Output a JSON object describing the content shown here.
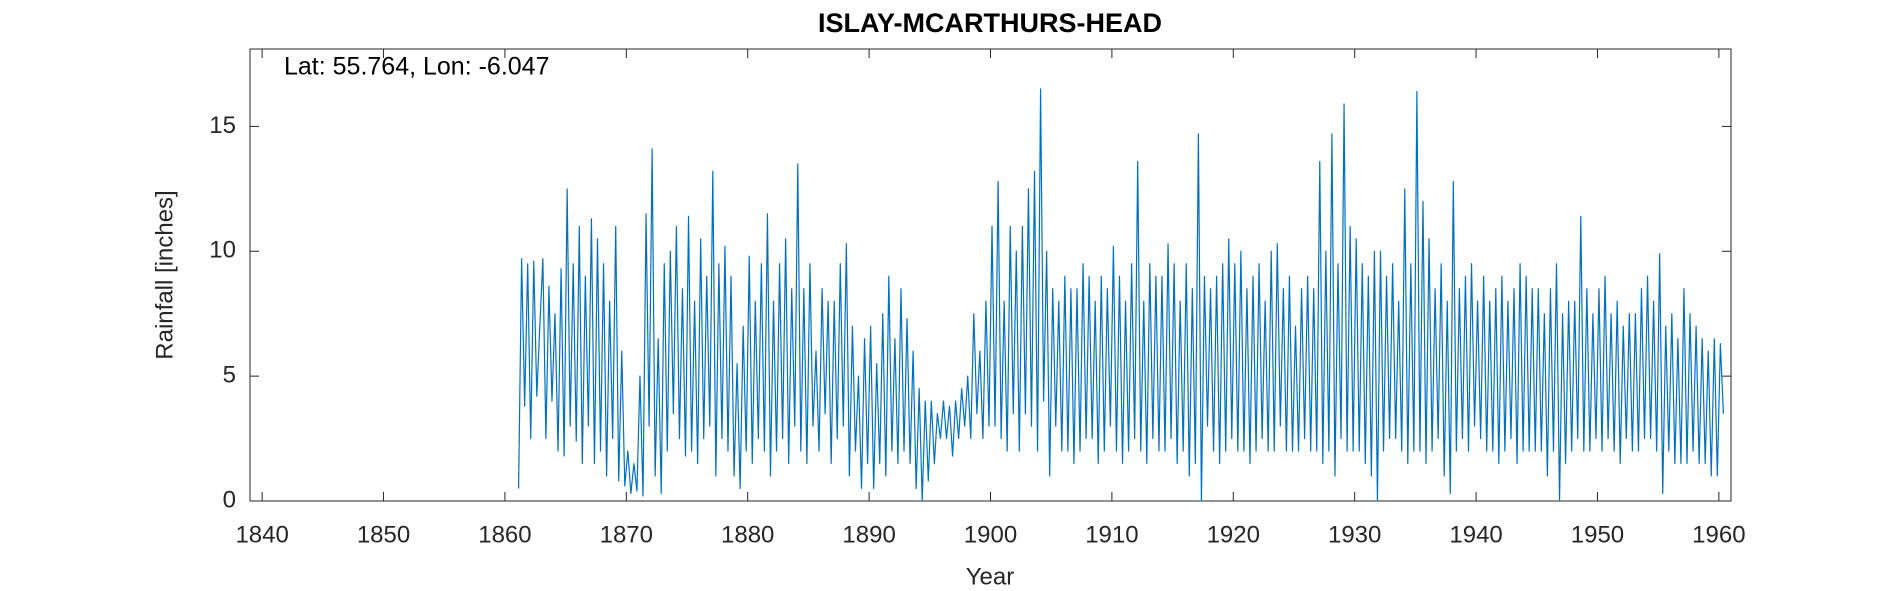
{
  "chart_data": {
    "type": "line",
    "title": "ISLAY-MCARTHURS-HEAD",
    "annotation": "Lat: 55.764, Lon: -6.047",
    "xlabel": "Year",
    "ylabel": "Rainfall [inches]",
    "color": "#0072bd",
    "xlim": [
      1839,
      1961
    ],
    "xticks": [
      1840,
      1850,
      1860,
      1870,
      1880,
      1890,
      1900,
      1910,
      1920,
      1930,
      1940,
      1950,
      1960
    ],
    "ylim": [
      0,
      18.1
    ],
    "yticks": [
      0,
      5,
      10,
      15
    ],
    "grid": false,
    "x": [
      1861.125,
      1861.375,
      1861.625,
      1861.875,
      1862.125,
      1862.375,
      1862.625,
      1862.875,
      1863.125,
      1863.375,
      1863.625,
      1863.875,
      1864.125,
      1864.375,
      1864.625,
      1864.875,
      1865.125,
      1865.375,
      1865.625,
      1865.875,
      1866.125,
      1866.375,
      1866.625,
      1866.875,
      1867.125,
      1867.375,
      1867.625,
      1867.875,
      1868.125,
      1868.375,
      1868.625,
      1868.875,
      1869.125,
      1869.375,
      1869.625,
      1869.875,
      1870.125,
      1870.375,
      1870.625,
      1870.875,
      1871.125,
      1871.375,
      1871.625,
      1871.875,
      1872.125,
      1872.375,
      1872.625,
      1872.875,
      1873.125,
      1873.375,
      1873.625,
      1873.875,
      1874.125,
      1874.375,
      1874.625,
      1874.875,
      1875.125,
      1875.375,
      1875.625,
      1875.875,
      1876.125,
      1876.375,
      1876.625,
      1876.875,
      1877.125,
      1877.375,
      1877.625,
      1877.875,
      1878.125,
      1878.375,
      1878.625,
      1878.875,
      1879.125,
      1879.375,
      1879.625,
      1879.875,
      1880.125,
      1880.375,
      1880.625,
      1880.875,
      1881.125,
      1881.375,
      1881.625,
      1881.875,
      1882.125,
      1882.375,
      1882.625,
      1882.875,
      1883.125,
      1883.375,
      1883.625,
      1883.875,
      1884.125,
      1884.375,
      1884.625,
      1884.875,
      1885.125,
      1885.375,
      1885.625,
      1885.875,
      1886.125,
      1886.375,
      1886.625,
      1886.875,
      1887.125,
      1887.375,
      1887.625,
      1887.875,
      1888.125,
      1888.375,
      1888.625,
      1888.875,
      1889.125,
      1889.375,
      1889.625,
      1889.875,
      1890.125,
      1890.375,
      1890.625,
      1890.875,
      1891.125,
      1891.375,
      1891.625,
      1891.875,
      1892.125,
      1892.375,
      1892.625,
      1892.875,
      1893.125,
      1893.375,
      1893.625,
      1893.875,
      1894.125,
      1894.375,
      1894.625,
      1894.875,
      1895.125,
      1895.375,
      1895.625,
      1895.875,
      1896.125,
      1896.375,
      1896.625,
      1896.875,
      1897.125,
      1897.375,
      1897.625,
      1897.875,
      1898.125,
      1898.375,
      1898.625,
      1898.875,
      1899.125,
      1899.375,
      1899.625,
      1899.875,
      1900.125,
      1900.375,
      1900.625,
      1900.875,
      1901.125,
      1901.375,
      1901.625,
      1901.875,
      1902.125,
      1902.375,
      1902.625,
      1902.875,
      1903.125,
      1903.375,
      1903.625,
      1903.875,
      1904.125,
      1904.375,
      1904.625,
      1904.875,
      1905.125,
      1905.375,
      1905.625,
      1905.875,
      1906.125,
      1906.375,
      1906.625,
      1906.875,
      1907.125,
      1907.375,
      1907.625,
      1907.875,
      1908.125,
      1908.375,
      1908.625,
      1908.875,
      1909.125,
      1909.375,
      1909.625,
      1909.875,
      1910.125,
      1910.375,
      1910.625,
      1910.875,
      1911.125,
      1911.375,
      1911.625,
      1911.875,
      1912.125,
      1912.375,
      1912.625,
      1912.875,
      1913.125,
      1913.375,
      1913.625,
      1913.875,
      1914.125,
      1914.375,
      1914.625,
      1914.875,
      1915.125,
      1915.375,
      1915.625,
      1915.875,
      1916.125,
      1916.375,
      1916.625,
      1916.875,
      1917.125,
      1917.375,
      1917.625,
      1917.875,
      1918.125,
      1918.375,
      1918.625,
      1918.875,
      1919.125,
      1919.375,
      1919.625,
      1919.875,
      1920.125,
      1920.375,
      1920.625,
      1920.875,
      1921.125,
      1921.375,
      1921.625,
      1921.875,
      1922.125,
      1922.375,
      1922.625,
      1922.875,
      1923.125,
      1923.375,
      1923.625,
      1923.875,
      1924.125,
      1924.375,
      1924.625,
      1924.875,
      1925.125,
      1925.375,
      1925.625,
      1925.875,
      1926.125,
      1926.375,
      1926.625,
      1926.875,
      1927.125,
      1927.375,
      1927.625,
      1927.875,
      1928.125,
      1928.375,
      1928.625,
      1928.875,
      1929.125,
      1929.375,
      1929.625,
      1929.875,
      1930.125,
      1930.375,
      1930.625,
      1930.875,
      1931.125,
      1931.375,
      1931.625,
      1931.875,
      1932.125,
      1932.375,
      1932.625,
      1932.875,
      1933.125,
      1933.375,
      1933.625,
      1933.875,
      1934.125,
      1934.375,
      1934.625,
      1934.875,
      1935.125,
      1935.375,
      1935.625,
      1935.875,
      1936.125,
      1936.375,
      1936.625,
      1936.875,
      1937.125,
      1937.375,
      1937.625,
      1937.875,
      1938.125,
      1938.375,
      1938.625,
      1938.875,
      1939.125,
      1939.375,
      1939.625,
      1939.875,
      1940.125,
      1940.375,
      1940.625,
      1940.875,
      1941.125,
      1941.375,
      1941.625,
      1941.875,
      1942.125,
      1942.375,
      1942.625,
      1942.875,
      1943.125,
      1943.375,
      1943.625,
      1943.875,
      1944.125,
      1944.375,
      1944.625,
      1944.875,
      1945.125,
      1945.375,
      1945.625,
      1945.875,
      1946.125,
      1946.375,
      1946.625,
      1946.875,
      1947.125,
      1947.375,
      1947.625,
      1947.875,
      1948.125,
      1948.375,
      1948.625,
      1948.875,
      1949.125,
      1949.375,
      1949.625,
      1949.875,
      1950.125,
      1950.375,
      1950.625,
      1950.875,
      1951.125,
      1951.375,
      1951.625,
      1951.875,
      1952.125,
      1952.375,
      1952.625,
      1952.875,
      1953.125,
      1953.375,
      1953.625,
      1953.875,
      1954.125,
      1954.375,
      1954.625,
      1954.875,
      1955.125,
      1955.375,
      1955.625,
      1955.875,
      1956.125,
      1956.375,
      1956.625,
      1956.875,
      1957.125,
      1957.375,
      1957.625,
      1957.875,
      1958.125,
      1958.375,
      1958.625,
      1958.875,
      1959.125,
      1959.375,
      1959.625,
      1959.875,
      1960.125,
      1960.375
    ],
    "values": [
      0.5,
      9.7,
      3.8,
      9.5,
      2.5,
      9.6,
      4.2,
      7.0,
      9.7,
      2.5,
      8.6,
      4.0,
      7.5,
      2.0,
      9.3,
      1.8,
      12.5,
      3.0,
      9.5,
      2.4,
      11.0,
      1.5,
      9.0,
      3.0,
      11.3,
      1.5,
      10.5,
      2.0,
      9.5,
      1.0,
      8.0,
      2.5,
      11.0,
      0.8,
      6.0,
      0.6,
      2.0,
      0.3,
      1.5,
      0.4,
      5.0,
      0.2,
      11.5,
      3.0,
      14.1,
      1.0,
      6.5,
      0.3,
      9.5,
      2.0,
      10.0,
      3.5,
      11.0,
      2.5,
      8.5,
      1.8,
      11.4,
      2.0,
      8.0,
      1.5,
      10.5,
      2.5,
      9.0,
      3.0,
      13.2,
      1.0,
      9.5,
      2.5,
      10.2,
      2.0,
      9.0,
      1.0,
      5.5,
      0.5,
      7.0,
      2.0,
      9.8,
      1.5,
      8.0,
      2.5,
      9.5,
      2.0,
      11.5,
      1.0,
      8.0,
      2.0,
      9.5,
      2.5,
      10.5,
      1.5,
      8.5,
      3.0,
      13.5,
      2.0,
      8.5,
      1.5,
      9.5,
      3.0,
      6.0,
      2.0,
      8.5,
      3.5,
      8.0,
      1.5,
      8.0,
      2.5,
      9.5,
      3.0,
      10.3,
      1.0,
      7.0,
      2.0,
      5.0,
      0.5,
      6.5,
      1.5,
      7.0,
      0.5,
      5.5,
      1.5,
      7.5,
      1.0,
      9.0,
      2.0,
      6.5,
      1.5,
      8.5,
      2.0,
      7.3,
      1.5,
      6.0,
      0.5,
      4.5,
      0.0,
      4.0,
      0.8,
      4.0,
      1.5,
      3.5,
      2.5,
      4.0,
      2.5,
      3.8,
      1.8,
      4.0,
      2.5,
      4.5,
      3.0,
      5.0,
      2.5,
      7.5,
      3.5,
      6.0,
      2.5,
      8.0,
      3.0,
      11.0,
      3.0,
      12.8,
      2.5,
      8.0,
      2.0,
      11.0,
      3.5,
      10.0,
      2.0,
      11.0,
      3.5,
      12.5,
      3.0,
      13.2,
      2.0,
      16.5,
      4.0,
      10.0,
      1.0,
      8.5,
      3.0,
      8.0,
      2.0,
      9.0,
      2.0,
      8.5,
      1.5,
      8.5,
      2.0,
      9.5,
      2.5,
      9.0,
      2.5,
      8.0,
      1.5,
      9.0,
      2.0,
      8.5,
      3.0,
      10.2,
      2.0,
      9.0,
      1.5,
      8.0,
      2.0,
      9.5,
      2.5,
      13.6,
      2.0,
      8.0,
      1.5,
      9.5,
      2.5,
      9.0,
      2.0,
      9.0,
      2.0,
      10.3,
      2.5,
      9.5,
      1.5,
      8.0,
      2.0,
      9.5,
      1.0,
      8.5,
      1.5,
      14.7,
      0.0,
      9.0,
      3.0,
      8.5,
      2.0,
      9.0,
      1.5,
      9.5,
      2.0,
      10.5,
      2.5,
      9.5,
      2.0,
      10.0,
      2.0,
      8.5,
      1.5,
      9.0,
      2.0,
      9.5,
      2.5,
      8.0,
      2.0,
      10.0,
      2.0,
      10.3,
      3.0,
      8.5,
      2.0,
      9.0,
      2.0,
      7.0,
      2.0,
      8.5,
      2.5,
      9.0,
      2.0,
      8.5,
      2.0,
      13.6,
      1.5,
      10.0,
      2.0,
      14.7,
      1.0,
      9.5,
      2.5,
      15.9,
      2.0,
      11.0,
      2.0,
      10.5,
      2.0,
      9.5,
      1.5,
      9.0,
      1.0,
      10.0,
      0.0,
      10.0,
      2.0,
      9.0,
      2.5,
      9.5,
      2.5,
      8.0,
      2.0,
      12.5,
      1.5,
      9.5,
      2.0,
      16.4,
      2.0,
      12.0,
      1.5,
      10.5,
      2.0,
      8.5,
      2.5,
      9.5,
      1.0,
      8.0,
      0.3,
      12.8,
      2.0,
      8.5,
      2.5,
      9.0,
      2.0,
      9.5,
      3.0,
      8.0,
      2.5,
      9.0,
      2.0,
      8.0,
      2.0,
      8.5,
      1.5,
      9.0,
      2.0,
      8.0,
      2.5,
      8.5,
      1.5,
      9.5,
      2.0,
      9.0,
      2.0,
      8.5,
      2.0,
      8.5,
      2.0,
      7.5,
      1.0,
      8.5,
      2.0,
      9.5,
      0.0,
      7.5,
      1.5,
      8.0,
      2.0,
      8.0,
      2.5,
      11.4,
      2.0,
      8.5,
      2.0,
      7.5,
      2.5,
      8.5,
      2.0,
      9.0,
      2.5,
      7.5,
      2.0,
      8.0,
      1.5,
      7.0,
      2.5,
      7.5,
      2.0,
      7.5,
      2.0,
      8.5,
      2.5,
      9.0,
      2.5,
      8.0,
      2.0,
      9.9,
      0.3,
      7.0,
      2.0,
      7.5,
      1.5,
      6.5,
      1.5,
      8.5,
      1.5,
      7.5,
      2.0,
      7.0,
      1.5,
      6.5,
      1.5,
      6.0,
      1.0,
      6.5,
      1.0,
      6.3,
      3.5
    ]
  }
}
